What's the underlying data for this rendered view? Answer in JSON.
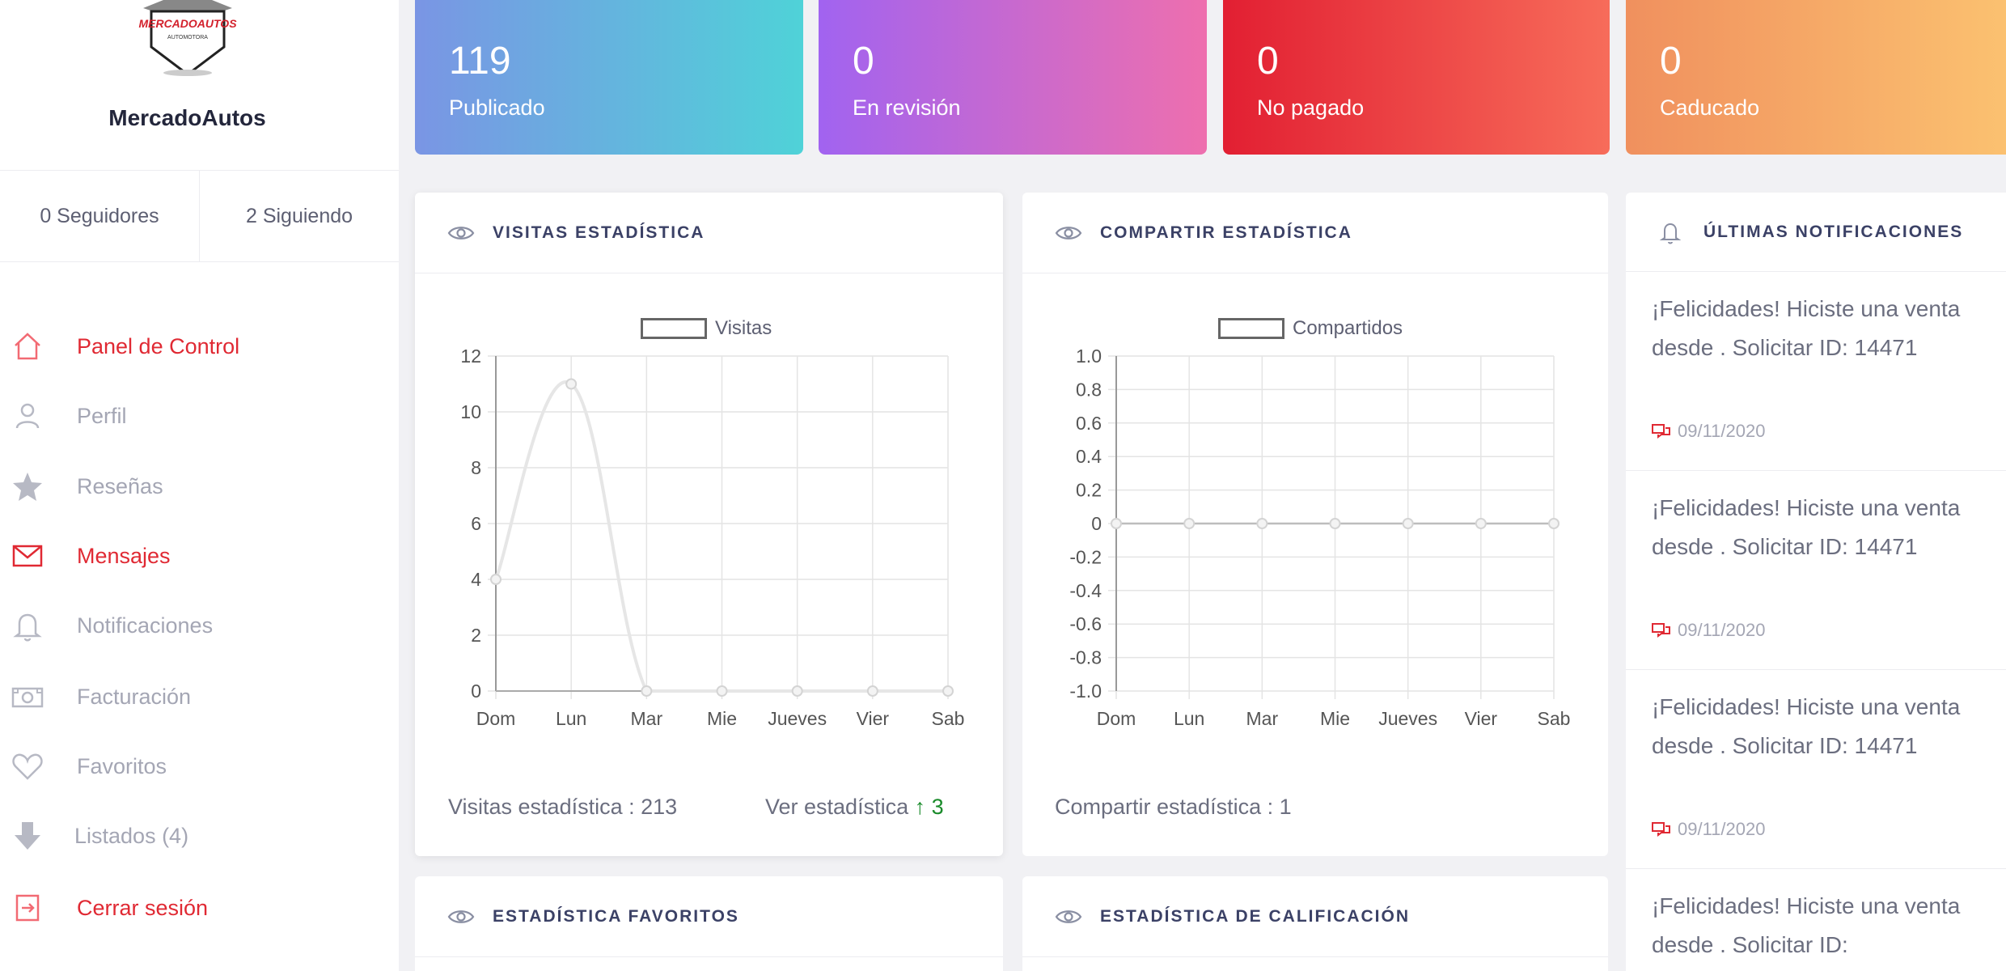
{
  "profile": {
    "name": "MercadoAutos",
    "logo_text": "MERCADOAUTOS",
    "logo_subtext": "AUTOMOTORA",
    "followers": "0 Seguidores",
    "following": "2 Siguiendo"
  },
  "nav": [
    {
      "label": "Panel de Control",
      "icon": "home-icon",
      "active": true
    },
    {
      "label": "Perfil",
      "icon": "user-icon",
      "active": false
    },
    {
      "label": "Reseñas",
      "icon": "star-icon",
      "active": false
    },
    {
      "label": "Mensajes",
      "icon": "mail-icon",
      "active": true
    },
    {
      "label": "Notificaciones",
      "icon": "bell-icon",
      "active": false
    },
    {
      "label": "Facturación",
      "icon": "money-icon",
      "active": false
    },
    {
      "label": "Favoritos",
      "icon": "heart-icon",
      "active": false
    },
    {
      "label": "Listados (4)",
      "icon": "arrow-down-icon",
      "active": false
    },
    {
      "label": "Cerrar sesión",
      "icon": "logout-icon",
      "active": true
    }
  ],
  "stats": [
    {
      "value": "119",
      "label": "Publicado"
    },
    {
      "value": "0",
      "label": "En revisión"
    },
    {
      "value": "0",
      "label": "No pagado"
    },
    {
      "value": "0",
      "label": "Caducado"
    }
  ],
  "visits_panel": {
    "title": "VISITAS ESTADÍSTICA",
    "legend": "Visitas",
    "footer": "Visitas estadística : 213",
    "link": "Ver estadística",
    "trend_arrow": "↑",
    "trend_value": "3"
  },
  "share_panel": {
    "title": "COMPARTIR ESTADÍSTICA",
    "legend": "Compartidos",
    "footer": "Compartir estadística : 1"
  },
  "favorites_panel": {
    "title": "ESTADÍSTICA FAVORITOS"
  },
  "rating_panel": {
    "title": "ESTADÍSTICA DE CALIFICACIÓN"
  },
  "notifications": {
    "title": "ÚLTIMAS NOTIFICACIONES",
    "items": [
      {
        "text": "¡Felicidades! Hiciste una venta desde . Solicitar ID: 14471",
        "date": "09/11/2020"
      },
      {
        "text": "¡Felicidades! Hiciste una venta desde . Solicitar ID: 14471",
        "date": "09/11/2020"
      },
      {
        "text": "¡Felicidades! Hiciste una venta desde . Solicitar ID: 14471",
        "date": "09/11/2020"
      },
      {
        "text": "¡Felicidades! Hiciste una venta desde . Solicitar ID:",
        "date": ""
      }
    ]
  },
  "chart_data": [
    {
      "type": "line",
      "legend": "Visitas",
      "categories": [
        "Dom",
        "Lun",
        "Mar",
        "Mie",
        "Jueves",
        "Vier",
        "Sab"
      ],
      "series": [
        {
          "name": "Visitas",
          "values": [
            4,
            11,
            0,
            0,
            0,
            0,
            0
          ]
        }
      ],
      "ylim": [
        0,
        12
      ],
      "yticks": [
        "0",
        "2",
        "4",
        "6",
        "8",
        "10",
        "12"
      ],
      "grid": true
    },
    {
      "type": "line",
      "legend": "Compartidos",
      "categories": [
        "Dom",
        "Lun",
        "Mar",
        "Mie",
        "Jueves",
        "Vier",
        "Sab"
      ],
      "series": [
        {
          "name": "Compartidos",
          "values": [
            0,
            0,
            0,
            0,
            0,
            0,
            0
          ]
        }
      ],
      "ylim": [
        -1.0,
        1.0
      ],
      "yticks": [
        "-1.0",
        "-0.8",
        "-0.6",
        "-0.4",
        "-0.2",
        "0",
        "0.2",
        "0.4",
        "0.6",
        "0.8",
        "1.0"
      ],
      "grid": true
    }
  ],
  "colors": {
    "accent": "#e02933",
    "muted": "#a4a6b4",
    "trend_up": "#1a8b2b"
  }
}
